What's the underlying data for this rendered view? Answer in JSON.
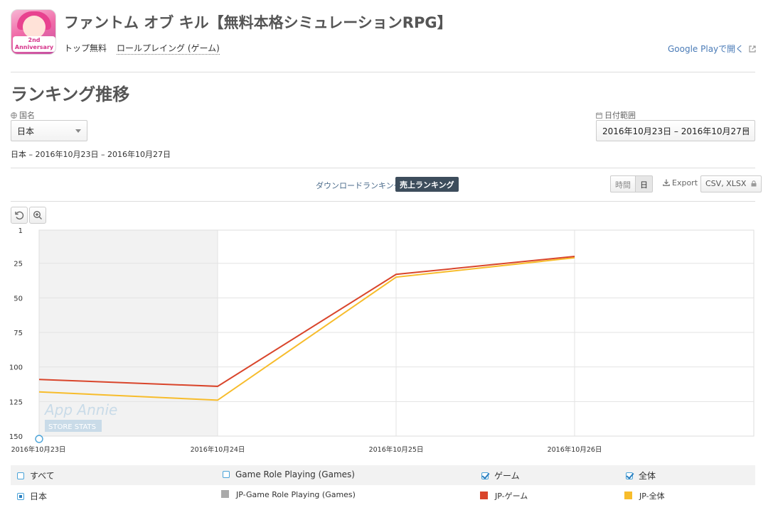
{
  "app": {
    "title": "ファントム オブ キル【無料本格シミュレーションRPG】",
    "icon_badge_line1": "2nd",
    "icon_badge_line2": "Anniversary",
    "category": "トップ無料",
    "genre": "ロールプレイング (ゲーム)",
    "store_link": "Google Playで開く"
  },
  "section": {
    "title": "ランキング推移"
  },
  "filters": {
    "country_label": "国名",
    "country_value": "日本",
    "date_label": "日付範囲",
    "date_value": "2016年10月23日 – 2016年10月27日",
    "summary": "日本 – 2016年10月23日 – 2016年10月27日"
  },
  "tabs": {
    "download": "ダウンロードランキング",
    "revenue": "売上ランキング"
  },
  "toolbar": {
    "hourly": "時間",
    "daily": "日",
    "export": "Export",
    "formats": "CSV, XLSX"
  },
  "watermark": {
    "line1": "App Annie",
    "line2": "STORE STATS"
  },
  "colors": {
    "jp_game": "#d9452b",
    "jp_overall": "#f7bc2b",
    "jp_rpg": "#aaaaaa",
    "accent": "#3d4d5c"
  },
  "legend": {
    "all": "すべて",
    "rpg": "Game Role Playing (Games)",
    "game": "ゲーム",
    "overall": "全体",
    "country": "日本"
  },
  "series_labels": {
    "rpg": "JP-Game Role Playing (Games)",
    "game": "JP-ゲーム",
    "overall": "JP-全体"
  },
  "chart_data": {
    "type": "line",
    "x": [
      "2016年10月23日",
      "2016年10月24日",
      "2016年10月25日",
      "2016年10月26日"
    ],
    "y_ticks": [
      "1",
      "25",
      "50",
      "75",
      "100",
      "125",
      "150"
    ],
    "ylim": [
      1,
      150
    ],
    "y_inverted": true,
    "grid": true,
    "series": [
      {
        "name": "JP-ゲーム",
        "color": "#d9452b",
        "values": [
          109,
          114,
          33,
          20
        ]
      },
      {
        "name": "JP-全体",
        "color": "#f7bc2b",
        "values": [
          118,
          124,
          35,
          21
        ]
      }
    ]
  }
}
